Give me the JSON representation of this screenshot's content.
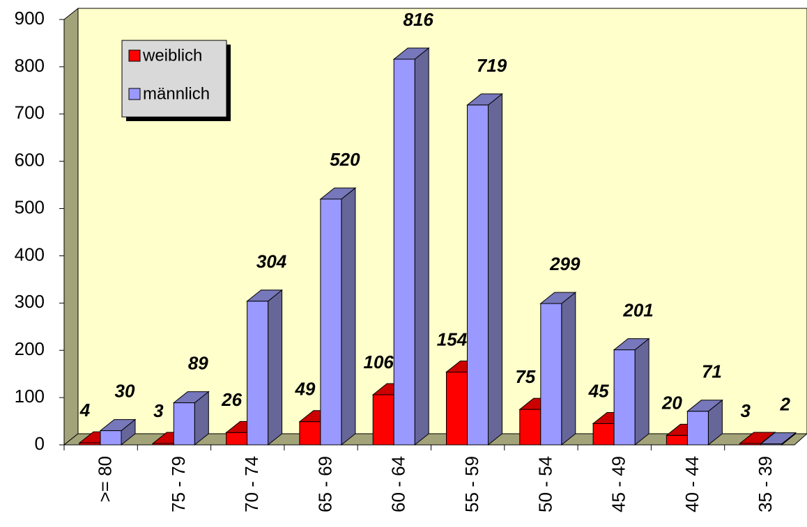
{
  "chart_data": {
    "type": "bar3d",
    "categories": [
      ">= 80",
      "75 - 79",
      "70 - 74",
      "65 - 69",
      "60 - 64",
      "55 - 59",
      "50 - 54",
      "45 - 49",
      "40 - 44",
      "35 - 39"
    ],
    "series": [
      {
        "name": "weiblich",
        "color": "#ff0000",
        "values": [
          4,
          3,
          26,
          49,
          106,
          154,
          75,
          45,
          20,
          3
        ]
      },
      {
        "name": "männlich",
        "color": "#9999ff",
        "values": [
          30,
          89,
          304,
          520,
          816,
          719,
          299,
          201,
          71,
          2
        ]
      }
    ],
    "ylim": [
      0,
      900
    ],
    "yticks": [
      0,
      100,
      200,
      300,
      400,
      500,
      600,
      700,
      800,
      900
    ],
    "legend": "upper left"
  }
}
